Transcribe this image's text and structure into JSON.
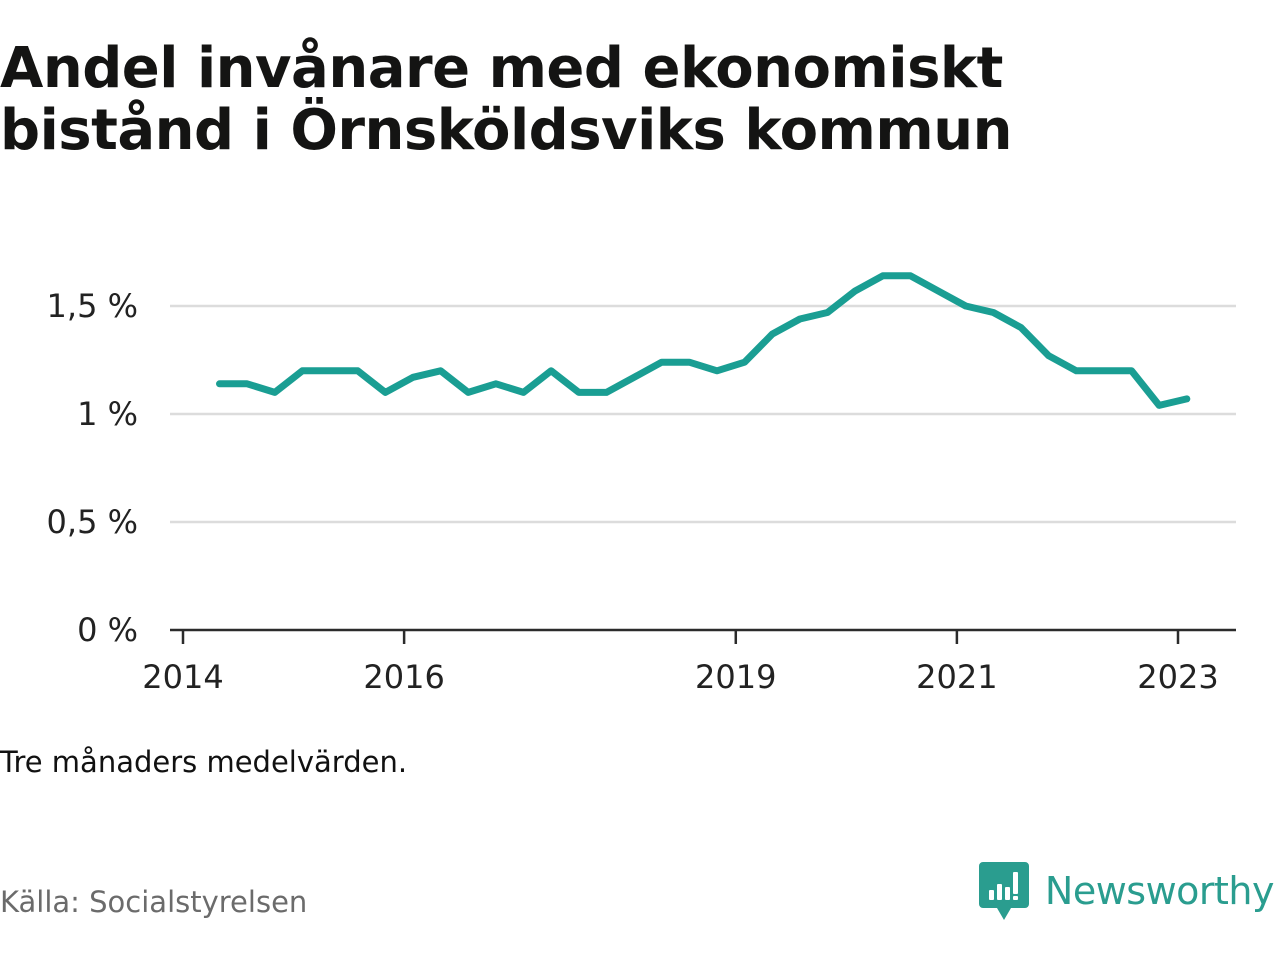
{
  "title_line1": "Andel invånare med ekonomiskt",
  "title_line2": "bistånd i Örnsköldsviks kommun",
  "note": "Tre månaders medelvärden.",
  "source": "Källa: Socialstyrelsen",
  "brand": {
    "name": "Newsworthy",
    "icon": "newsworthy-logo-icon",
    "color": "#2a9d8f"
  },
  "chart_data": {
    "type": "line",
    "line_color": "#1a9e93",
    "grid": true,
    "ylim": [
      0,
      1.65
    ],
    "y_ticks": [
      0,
      0.5,
      1,
      1.5
    ],
    "y_tick_labels": [
      "0 %",
      "0,5 %",
      "1 %",
      "1,5 %"
    ],
    "x_ticks": [
      2014,
      2016,
      2019,
      2021,
      2023
    ],
    "x_tick_labels": [
      "2014",
      "2016",
      "2019",
      "2021",
      "2023"
    ],
    "xlim": [
      2014,
      2023.5
    ],
    "series": [
      {
        "x": [
          2014.33,
          2014.58,
          2014.83,
          2015.08,
          2015.33,
          2015.58,
          2015.83,
          2016.08,
          2016.33,
          2016.58,
          2016.83,
          2017.08,
          2017.33,
          2017.58,
          2017.83,
          2018.08,
          2018.33,
          2018.58,
          2018.83,
          2019.08,
          2019.33,
          2019.58,
          2019.83,
          2020.08,
          2020.33,
          2020.58,
          2020.83,
          2021.08,
          2021.33,
          2021.58,
          2021.83,
          2022.08,
          2022.33,
          2022.58,
          2022.83,
          2023.08
        ],
        "values": [
          1.14,
          1.14,
          1.1,
          1.2,
          1.2,
          1.2,
          1.1,
          1.17,
          1.2,
          1.1,
          1.14,
          1.1,
          1.2,
          1.1,
          1.1,
          1.17,
          1.24,
          1.24,
          1.2,
          1.24,
          1.37,
          1.44,
          1.47,
          1.57,
          1.64,
          1.64,
          1.57,
          1.5,
          1.47,
          1.4,
          1.27,
          1.2,
          1.2,
          1.2,
          1.04,
          1.07
        ]
      }
    ]
  }
}
